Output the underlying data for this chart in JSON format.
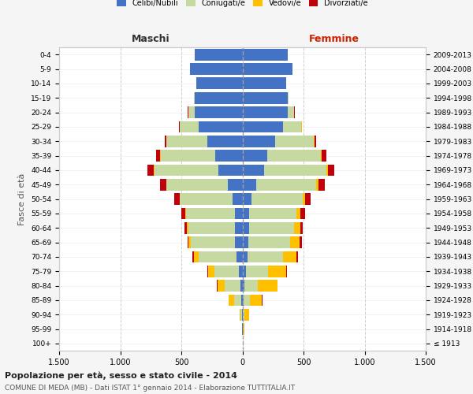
{
  "age_groups": [
    "100+",
    "95-99",
    "90-94",
    "85-89",
    "80-84",
    "75-79",
    "70-74",
    "65-69",
    "60-64",
    "55-59",
    "50-54",
    "45-49",
    "40-44",
    "35-39",
    "30-34",
    "25-29",
    "20-24",
    "15-19",
    "10-14",
    "5-9",
    "0-4"
  ],
  "birth_years": [
    "≤ 1913",
    "1914-1918",
    "1919-1923",
    "1924-1928",
    "1929-1933",
    "1934-1938",
    "1939-1943",
    "1944-1948",
    "1949-1953",
    "1954-1958",
    "1959-1963",
    "1964-1968",
    "1969-1973",
    "1974-1978",
    "1979-1983",
    "1984-1988",
    "1989-1993",
    "1994-1998",
    "1999-2003",
    "2004-2008",
    "2009-2013"
  ],
  "maschi": {
    "celibi": [
      0,
      2,
      5,
      10,
      15,
      30,
      50,
      60,
      60,
      60,
      80,
      120,
      200,
      220,
      290,
      360,
      390,
      390,
      380,
      430,
      390
    ],
    "coniugati": [
      0,
      2,
      8,
      60,
      130,
      200,
      310,
      360,
      380,
      400,
      430,
      500,
      520,
      450,
      330,
      150,
      50,
      5,
      0,
      0,
      0
    ],
    "vedovi": [
      0,
      2,
      8,
      40,
      60,
      50,
      40,
      20,
      15,
      10,
      5,
      5,
      5,
      5,
      5,
      5,
      5,
      0,
      0,
      0,
      0
    ],
    "divorziati": [
      0,
      0,
      0,
      5,
      5,
      5,
      10,
      10,
      20,
      30,
      40,
      50,
      50,
      30,
      10,
      5,
      2,
      0,
      0,
      0,
      0
    ]
  },
  "femmine": {
    "nubili": [
      0,
      2,
      5,
      10,
      15,
      30,
      45,
      50,
      55,
      55,
      75,
      110,
      175,
      200,
      265,
      330,
      370,
      370,
      360,
      410,
      370
    ],
    "coniugate": [
      0,
      2,
      8,
      50,
      110,
      180,
      290,
      340,
      370,
      390,
      420,
      490,
      510,
      440,
      320,
      150,
      50,
      5,
      0,
      0,
      0
    ],
    "vedove": [
      1,
      10,
      40,
      100,
      160,
      150,
      110,
      80,
      50,
      30,
      20,
      20,
      15,
      10,
      5,
      5,
      5,
      2,
      0,
      0,
      0
    ],
    "divorziate": [
      0,
      0,
      2,
      5,
      5,
      5,
      10,
      15,
      20,
      35,
      45,
      55,
      50,
      35,
      10,
      5,
      2,
      0,
      0,
      0,
      0
    ]
  },
  "color_celibi": "#4472c4",
  "color_coniugati": "#c5d9a0",
  "color_vedovi": "#ffc000",
  "color_divorziati": "#c0000a",
  "xlim": 1500,
  "title_main": "Popolazione per età, sesso e stato civile - 2014",
  "title_sub": "COMUNE DI MEDA (MB) - Dati ISTAT 1° gennaio 2014 - Elaborazione TUTTITALIA.IT",
  "ylabel_left": "Fasce di età",
  "xlabel_maschi": "Maschi",
  "xlabel_femmine": "Femmine",
  "bg_color": "#f5f5f5",
  "plot_bg": "#ffffff"
}
